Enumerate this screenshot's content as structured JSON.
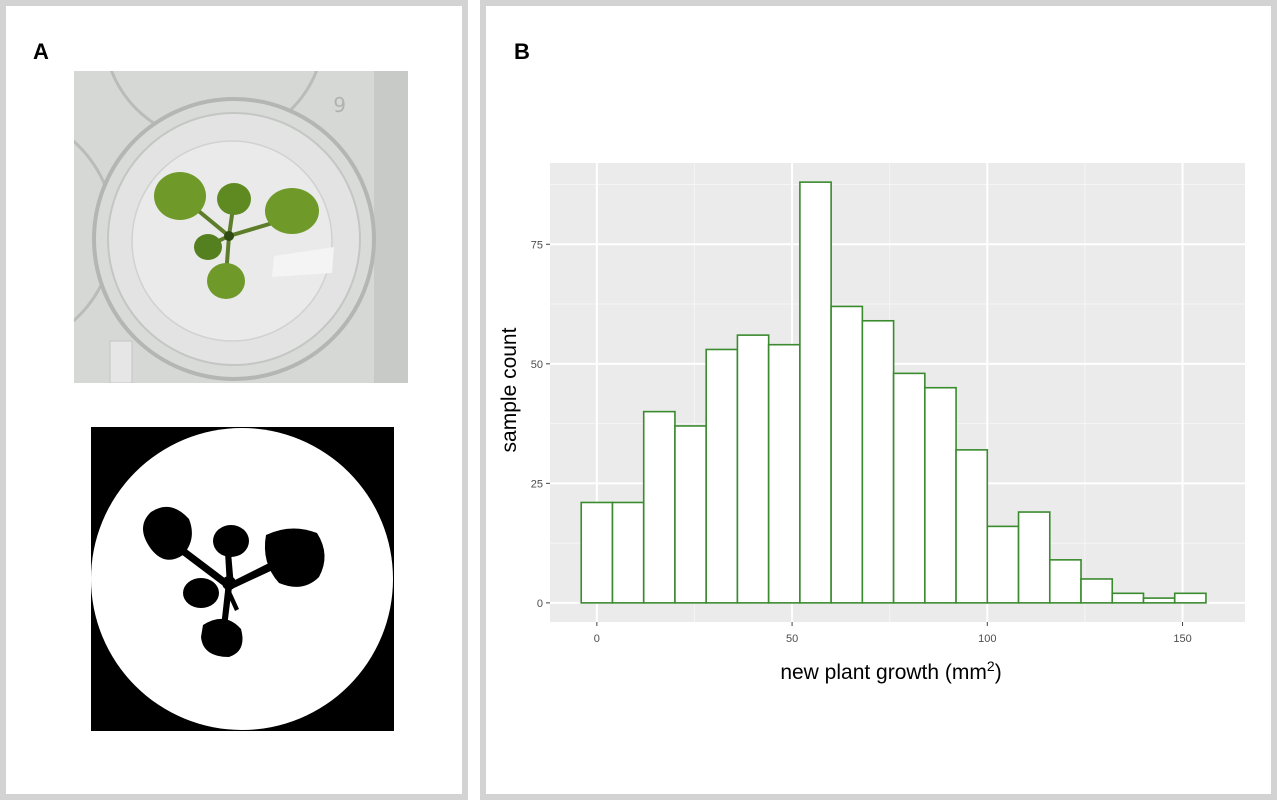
{
  "panels": {
    "a_label": "A",
    "b_label": "B"
  },
  "colors": {
    "panel_border": "#d3d3d3",
    "plot_background": "#ebebeb",
    "bar_outline": "#3a8a2e",
    "bar_fill": "#ffffff",
    "leaf_green": "#6f9a2a"
  },
  "chart_data": {
    "type": "bar",
    "xlabel": "new plant growth (mm",
    "xlabel_superscript": "2",
    "xlabel_suffix": ")",
    "ylabel": "sample count",
    "x_ticks": [
      "0",
      "50",
      "100",
      "150"
    ],
    "y_ticks": [
      "0",
      "25",
      "50",
      "75"
    ],
    "y_ticks_shown": [
      "0",
      "25",
      "50",
      "75"
    ],
    "bin_width": 8,
    "bin_starts": [
      -4,
      4,
      12,
      20,
      28,
      36,
      44,
      52,
      60,
      68,
      76,
      84,
      92,
      100,
      108,
      116,
      124,
      132,
      140,
      148
    ],
    "values": [
      21,
      21,
      40,
      37,
      53,
      56,
      54,
      88,
      62,
      59,
      48,
      45,
      32,
      16,
      19,
      9,
      5,
      2,
      1,
      2
    ],
    "xlim": [
      -12,
      166
    ],
    "ylim": [
      -4,
      92
    ],
    "grid": true
  }
}
